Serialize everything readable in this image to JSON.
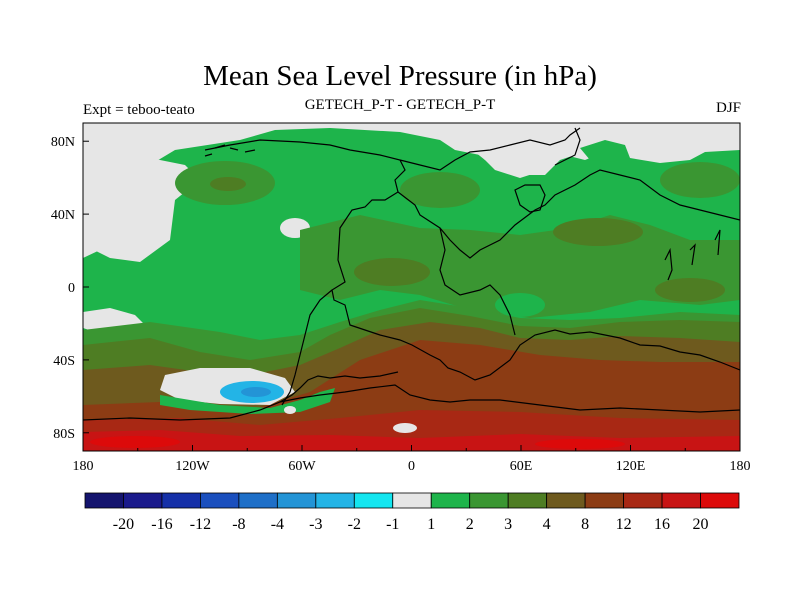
{
  "chart_data": {
    "type": "map",
    "title": "Mean Sea Level Pressure (in hPa)",
    "left_label": "Expt = teboo-teato",
    "center_label": "GETECH_P-T - GETECH_P-T",
    "right_label": "DJF",
    "lon_ticks": [
      "180",
      "120W",
      "60W",
      "0",
      "60E",
      "120E",
      "180"
    ],
    "lat_ticks": [
      "80N",
      "40N",
      "0",
      "40S",
      "80S"
    ],
    "lon_range": [
      -180,
      180
    ],
    "lat_range": [
      -90,
      90
    ],
    "colorbar": {
      "labels": [
        "-20",
        "-16",
        "-12",
        "-8",
        "-4",
        "-3",
        "-2",
        "-1",
        "1",
        "2",
        "3",
        "4",
        "8",
        "12",
        "16",
        "20"
      ],
      "colors": [
        "#14146e",
        "#1a1a8c",
        "#1530a8",
        "#1a4fbe",
        "#1e6fc8",
        "#2394d6",
        "#23b4e6",
        "#14e6f0",
        "#e6e6e6",
        "#1eb44b",
        "#3a9632",
        "#4e7d23",
        "#6e5a1e",
        "#8c3c14",
        "#a82814",
        "#c81414",
        "#dc0a0a"
      ]
    }
  }
}
